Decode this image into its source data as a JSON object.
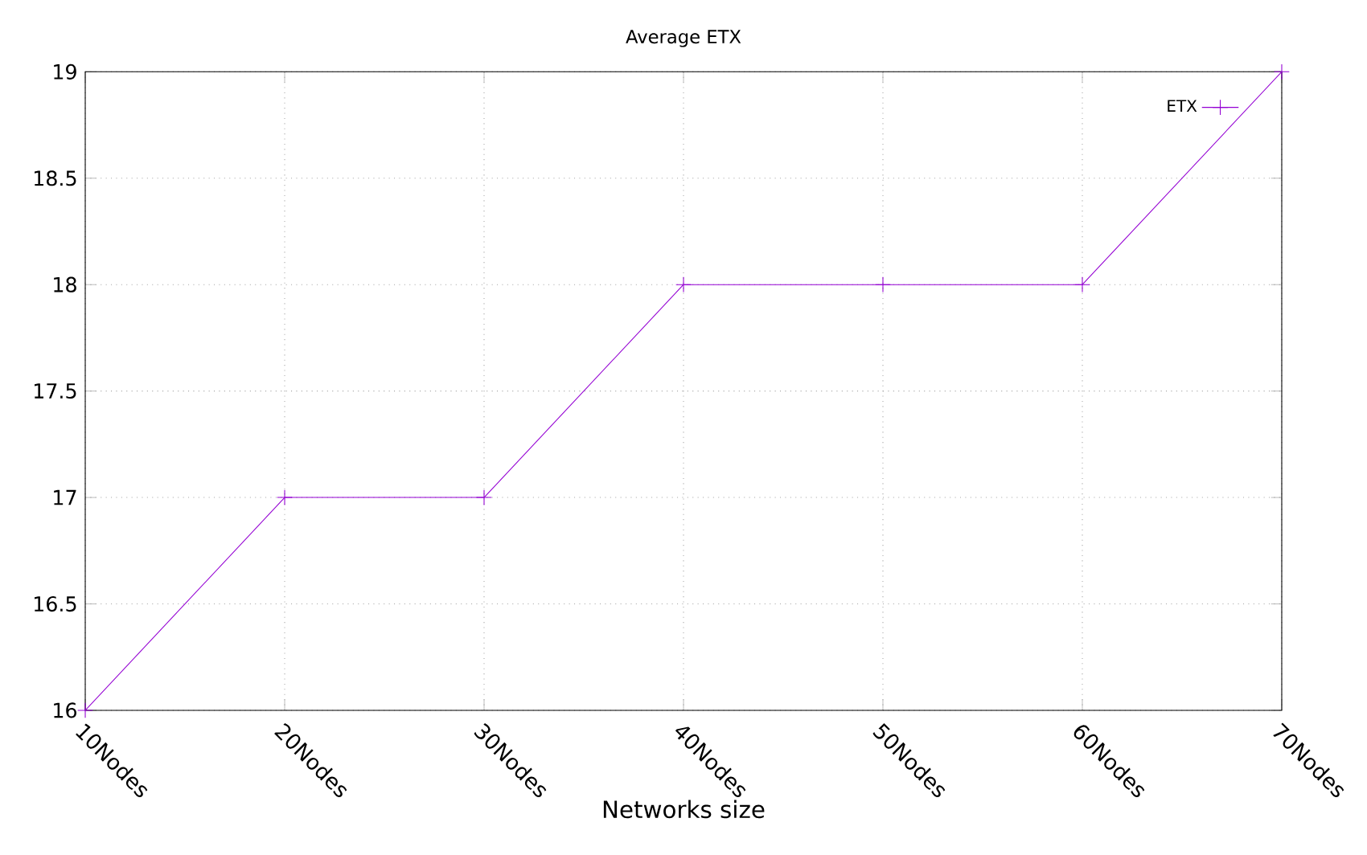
{
  "chart_data": {
    "type": "line",
    "title": "Average ETX",
    "xlabel": "Networks size",
    "categories": [
      "10Nodes",
      "20Nodes",
      "30Nodes",
      "40Nodes",
      "50Nodes",
      "60Nodes",
      "70Nodes"
    ],
    "series": [
      {
        "name": "ETX",
        "color": "#9400d3",
        "values": [
          16,
          17,
          17,
          18,
          18,
          18,
          19
        ]
      }
    ],
    "ylim": [
      16,
      19
    ],
    "yticks": [
      16,
      16.5,
      17,
      17.5,
      18,
      18.5,
      19
    ],
    "grid": true,
    "legend": "top right",
    "marker": "cross"
  }
}
